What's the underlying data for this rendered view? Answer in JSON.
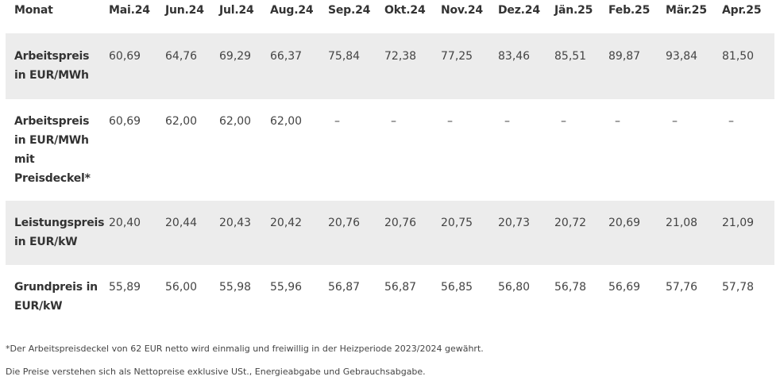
{
  "table": {
    "header": {
      "label": "Monat",
      "months": [
        "Mai.24",
        "Jun.24",
        "Jul.24",
        "Aug.24",
        "Sep.24",
        "Okt.24",
        "Nov.24",
        "Dez.24",
        "Jän.25",
        "Feb.25",
        "Mär.25",
        "Apr.25"
      ]
    },
    "rows": [
      {
        "label_lines": [
          "Arbeitspreis",
          "in EUR/MWh"
        ],
        "values": [
          "60,69",
          "64,76",
          "69,29",
          "66,37",
          "75,84",
          "72,38",
          "77,25",
          "83,46",
          "85,51",
          "89,87",
          "93,84",
          "81,50"
        ]
      },
      {
        "label_lines": [
          "Arbeitspreis",
          "in EUR/MWh",
          "mit",
          "Preisdeckel*"
        ],
        "values": [
          "60,69",
          "62,00",
          "62,00",
          "62,00",
          "–",
          "–",
          "–",
          "–",
          "–",
          "–",
          "–",
          "–"
        ]
      },
      {
        "label_lines": [
          "Leistungspreis",
          "in EUR/kW"
        ],
        "values": [
          "20,40",
          "20,44",
          "20,43",
          "20,42",
          "20,76",
          "20,76",
          "20,75",
          "20,73",
          "20,72",
          "20,69",
          "21,08",
          "21,09"
        ]
      },
      {
        "label_lines": [
          "Grundpreis in",
          "EUR/kW"
        ],
        "values": [
          "55,89",
          "56,00",
          "55,98",
          "55,96",
          "56,87",
          "56,87",
          "56,85",
          "56,80",
          "56,78",
          "56,69",
          "57,76",
          "57,78"
        ]
      }
    ]
  },
  "footnotes": {
    "note_1": "*Der Arbeitspreisdeckel von 62 EUR netto wird einmalig und freiwillig in der Heizperiode 2023/2024 gewährt.",
    "note_2": "Die Preise verstehen sich als Nettopreise exklusive USt., Energieabgabe und Gebrauchsabgabe."
  }
}
